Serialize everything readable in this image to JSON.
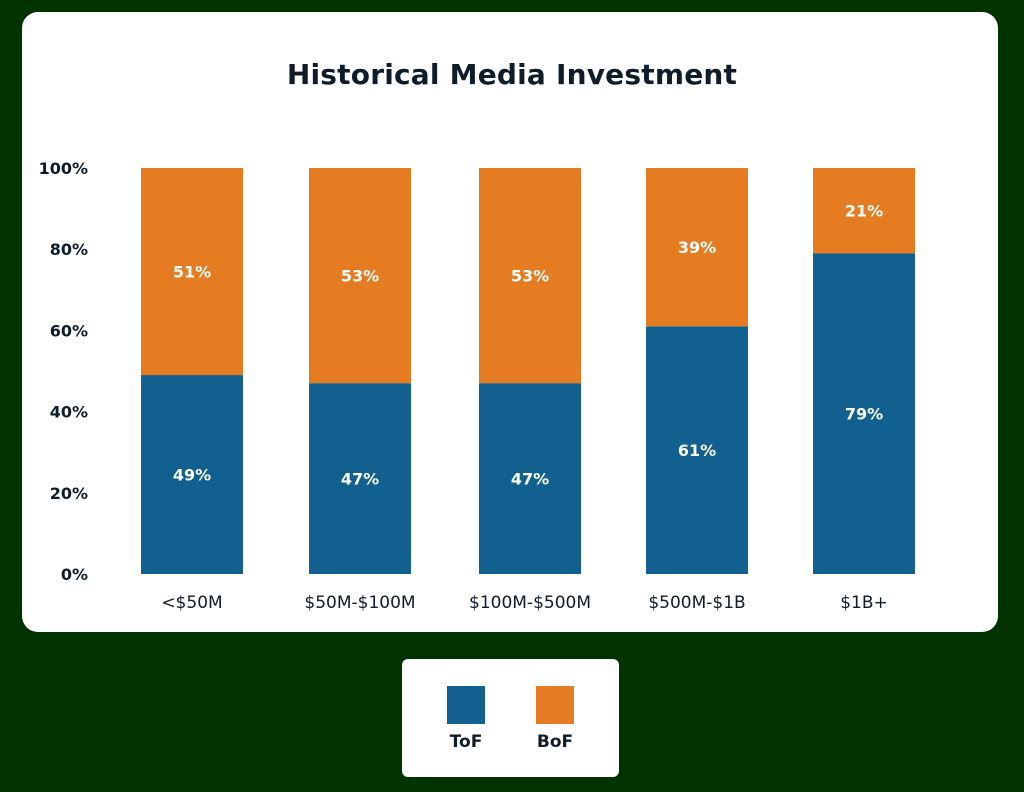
{
  "chart_data": {
    "type": "bar",
    "stacked": true,
    "title": "Historical Media Investment",
    "categories": [
      "<$50M",
      "$50M-$100M",
      "$100M-$500M",
      "$500M-$1B",
      "$1B+"
    ],
    "series": [
      {
        "name": "ToF",
        "values": [
          49,
          47,
          47,
          61,
          79
        ],
        "labels": [
          "49%",
          "47%",
          "47%",
          "61%",
          "79%"
        ],
        "color": "#11608f"
      },
      {
        "name": "BoF",
        "values": [
          51,
          53,
          53,
          39,
          21
        ],
        "labels": [
          "51%",
          "53%",
          "53%",
          "39%",
          "21%"
        ],
        "color": "#e67c22"
      }
    ],
    "y_ticks": [
      "0%",
      "20%",
      "40%",
      "60%",
      "80%",
      "100%"
    ],
    "ylim": [
      0,
      100
    ],
    "grid": false,
    "legend_position": "bottom"
  },
  "colors": {
    "background": "#003300",
    "card": "#ffffff",
    "text": "#0f1c2a",
    "bar_label": "#ffffff"
  }
}
